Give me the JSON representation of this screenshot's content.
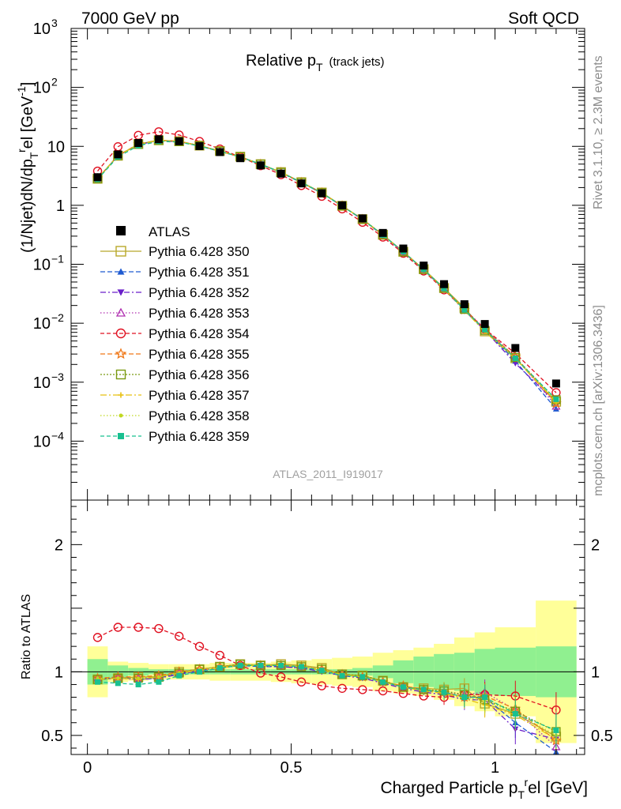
{
  "header": {
    "left": "7000 GeV pp",
    "right": "Soft QCD"
  },
  "side_labels": {
    "rivet": "Rivet 3.1.10, ≥ 2.3M events",
    "mcplots": "mcplots.cern.ch [arXiv:1306.3436]"
  },
  "analysis_id": "ATLAS_2011_I919017",
  "chart_data": {
    "type": "scatter",
    "title_main": "Relative p",
    "title_sub": "T",
    "title_extra": "(track jets)",
    "ylabel": "(1/Njet)dN/dp_T^rel [GeV^-1]",
    "ratio_ylabel": "Ratio to ATLAS",
    "xlabel": "Charged Particle p_T^rel [GeV]",
    "xlim": [
      -0.04,
      1.22
    ],
    "ylim": [
      1e-05,
      1000
    ],
    "ylog": true,
    "ratio_ylim": [
      0.35,
      2.35
    ],
    "x_ticks": [
      "0",
      "0.5",
      "1"
    ],
    "y_ticks": [
      "10^3",
      "10^2",
      "10",
      "1",
      "10^-1",
      "10^-2",
      "10^-3",
      "10^-4"
    ],
    "ratio_ticks": [
      "0.5",
      "1",
      "2"
    ],
    "x": [
      0.025,
      0.075,
      0.125,
      0.175,
      0.225,
      0.275,
      0.325,
      0.375,
      0.425,
      0.475,
      0.525,
      0.575,
      0.625,
      0.675,
      0.725,
      0.775,
      0.825,
      0.875,
      0.925,
      0.975,
      1.05,
      1.15
    ],
    "data": {
      "name": "ATLAS",
      "values": [
        3.0,
        7.3,
        11.4,
        13.2,
        12.2,
        10.1,
        8.0,
        6.3,
        4.75,
        3.45,
        2.35,
        1.6,
        1.0,
        0.6,
        0.34,
        0.185,
        0.095,
        0.046,
        0.021,
        0.0097,
        0.0038,
        0.00095
      ]
    },
    "bands": {
      "edges": [
        0,
        0.05,
        0.1,
        0.15,
        0.2,
        0.25,
        0.3,
        0.35,
        0.4,
        0.45,
        0.5,
        0.55,
        0.6,
        0.65,
        0.7,
        0.75,
        0.8,
        0.85,
        0.9,
        0.95,
        1.0,
        1.1,
        1.2
      ],
      "stat_half": [
        0.1,
        0.05,
        0.03,
        0.02,
        0.02,
        0.02,
        0.02,
        0.02,
        0.02,
        0.02,
        0.02,
        0.02,
        0.02,
        0.03,
        0.05,
        0.09,
        0.12,
        0.14,
        0.15,
        0.18,
        0.19,
        0.2
      ],
      "total_half": [
        0.2,
        0.08,
        0.07,
        0.06,
        0.06,
        0.06,
        0.07,
        0.07,
        0.07,
        0.08,
        0.09,
        0.1,
        0.11,
        0.12,
        0.15,
        0.17,
        0.19,
        0.22,
        0.27,
        0.31,
        0.35,
        0.56
      ],
      "stat_color": "#90f090",
      "total_color": "#ffff99"
    },
    "series": [
      {
        "name": "Pythia 6.428 350",
        "color": "#b8a82a",
        "marker": "square-open",
        "dash": "",
        "size": 11,
        "ratio": [
          0.94,
          0.95,
          0.96,
          0.96,
          1.0,
          1.02,
          1.04,
          1.06,
          1.05,
          1.06,
          1.05,
          1.03,
          0.98,
          0.97,
          0.93,
          0.88,
          0.87,
          0.86,
          0.87,
          0.75,
          0.67,
          0.49
        ]
      },
      {
        "name": "Pythia 6.428 351",
        "color": "#1f5ad1",
        "marker": "triangle-up",
        "dash": "6 3",
        "size": 8,
        "ratio": [
          0.94,
          0.96,
          0.94,
          0.95,
          0.99,
          1.0,
          1.03,
          1.05,
          1.04,
          1.04,
          1.03,
          1.01,
          0.98,
          0.96,
          0.92,
          0.88,
          0.85,
          0.84,
          0.8,
          0.8,
          0.6,
          0.37
        ]
      },
      {
        "name": "Pythia 6.428 352",
        "color": "#6a1fc9",
        "marker": "triangle-down",
        "dash": "7 3 2 3",
        "size": 8,
        "ratio": [
          0.94,
          0.95,
          0.94,
          0.95,
          0.98,
          1.01,
          1.03,
          1.05,
          1.05,
          1.04,
          1.03,
          1.0,
          0.97,
          0.95,
          0.91,
          0.87,
          0.84,
          0.82,
          0.78,
          0.78,
          0.55,
          0.47
        ]
      },
      {
        "name": "Pythia 6.428 353",
        "color": "#b02fb0",
        "marker": "triangle-open",
        "dash": "1.5 2.5",
        "size": 9,
        "ratio": [
          0.95,
          0.95,
          0.95,
          0.96,
          0.99,
          1.02,
          1.04,
          1.05,
          1.05,
          1.05,
          1.04,
          1.02,
          0.98,
          0.96,
          0.92,
          0.88,
          0.86,
          0.84,
          0.82,
          0.84,
          0.7,
          0.41
        ]
      },
      {
        "name": "Pythia 6.428 354",
        "color": "#e01020",
        "marker": "circle-open",
        "dash": "5 3",
        "size": 10,
        "ratio": [
          1.27,
          1.35,
          1.35,
          1.34,
          1.28,
          1.2,
          1.13,
          1.05,
          0.99,
          0.96,
          0.92,
          0.89,
          0.87,
          0.86,
          0.85,
          0.83,
          0.81,
          0.8,
          0.82,
          0.82,
          0.81,
          0.7
        ]
      },
      {
        "name": "Pythia 6.428 355",
        "color": "#f07818",
        "marker": "star",
        "dash": "6 3",
        "size": 11,
        "ratio": [
          0.95,
          0.96,
          0.96,
          0.97,
          1.0,
          1.02,
          1.04,
          1.05,
          1.05,
          1.05,
          1.04,
          1.02,
          0.98,
          0.96,
          0.92,
          0.89,
          0.86,
          0.84,
          0.8,
          0.81,
          0.71,
          0.46
        ]
      },
      {
        "name": "Pythia 6.428 356",
        "color": "#7a9a10",
        "marker": "square-open",
        "dash": "2 2",
        "size": 10,
        "ratio": [
          0.94,
          0.95,
          0.95,
          0.96,
          0.99,
          1.02,
          1.04,
          1.06,
          1.05,
          1.05,
          1.04,
          1.02,
          0.98,
          0.97,
          0.93,
          0.88,
          0.86,
          0.85,
          0.82,
          0.78,
          0.69,
          0.53
        ]
      },
      {
        "name": "Pythia 6.428 357",
        "color": "#e8c010",
        "marker": "plus",
        "dash": "8 3 2 3",
        "size": 6,
        "ratio": [
          0.94,
          0.95,
          0.94,
          0.96,
          0.99,
          1.01,
          1.03,
          1.05,
          1.05,
          1.05,
          1.04,
          1.01,
          0.98,
          0.96,
          0.92,
          0.88,
          0.85,
          0.83,
          0.79,
          0.74,
          0.66,
          0.47
        ]
      },
      {
        "name": "Pythia 6.428 358",
        "color": "#c0d820",
        "marker": "dot",
        "dash": "1.5 2.5",
        "size": 4,
        "ratio": [
          0.95,
          0.95,
          0.95,
          0.96,
          0.99,
          1.02,
          1.04,
          1.05,
          1.05,
          1.05,
          1.04,
          1.02,
          0.98,
          0.96,
          0.92,
          0.88,
          0.85,
          0.84,
          0.8,
          0.77,
          0.68,
          0.5
        ]
      },
      {
        "name": "Pythia 6.428 359",
        "color": "#18c090",
        "marker": "square",
        "dash": "5 3",
        "size": 7,
        "ratio": [
          0.92,
          0.91,
          0.9,
          0.92,
          0.97,
          1.0,
          1.03,
          1.05,
          1.05,
          1.05,
          1.04,
          1.01,
          0.97,
          0.96,
          0.92,
          0.88,
          0.86,
          0.84,
          0.8,
          0.8,
          0.67,
          0.54
        ]
      }
    ]
  }
}
